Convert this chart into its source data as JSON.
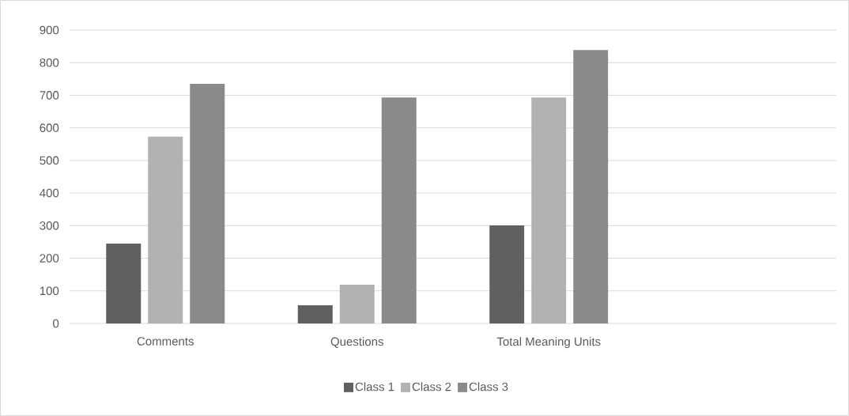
{
  "chart_data": {
    "type": "bar",
    "categories": [
      "Comments",
      "Questions",
      "Total Meaning Units",
      null
    ],
    "series": [
      {
        "name": "Class 1",
        "color": "#606060",
        "values": [
          245,
          56,
          301,
          null
        ]
      },
      {
        "name": "Class 2",
        "color": "#b2b2b2",
        "values": [
          573,
          119,
          693,
          null
        ]
      },
      {
        "name": "Class 3",
        "color": "#8a8a8a",
        "values": [
          735,
          693,
          839,
          null
        ]
      }
    ],
    "ylim": [
      0,
      900
    ],
    "yticks": [
      0,
      100,
      200,
      300,
      400,
      500,
      600,
      700,
      800,
      900
    ],
    "grid": "y",
    "legend": "bottom"
  }
}
